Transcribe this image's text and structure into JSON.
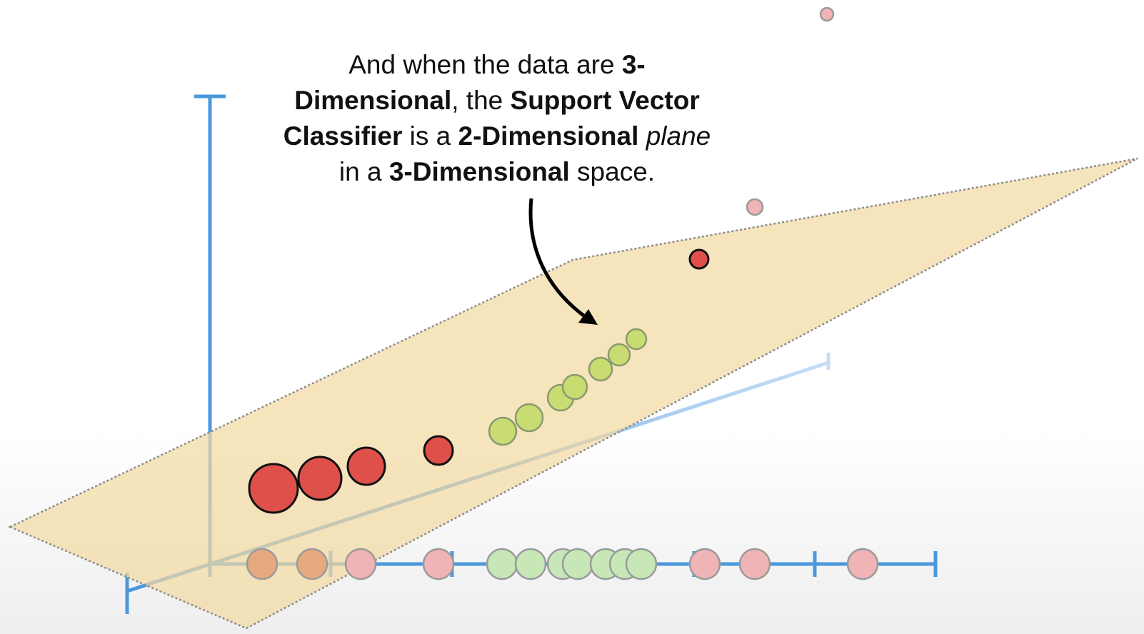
{
  "caption": {
    "l1a": "And when the data are ",
    "l1b": "3-",
    "l2a": "Dimensional",
    "l2b": ", the ",
    "l2c": "Support Vector",
    "l3a": "Classifier",
    "l3b": " is a ",
    "l3c": "2-Dimensional",
    "l3d": " ",
    "l3e": "plane",
    "l4a": "in a ",
    "l4b": "3-Dimensional",
    "l4c": " space."
  },
  "colors": {
    "axis": "#4a98dc",
    "axis_faded": "#b7d6f3",
    "plane_fill": "#f2d9a4",
    "plane_edge": "#8c8c8c",
    "red_point": "#e0504a",
    "green_point": "#c9dc72",
    "pink_point": "#f0b3b6",
    "orange_point": "#e7aa7f",
    "light_green_point": "#c7e7b7",
    "arrow": "#000000"
  },
  "icons": {
    "arrow": "curved-arrow-icon"
  }
}
